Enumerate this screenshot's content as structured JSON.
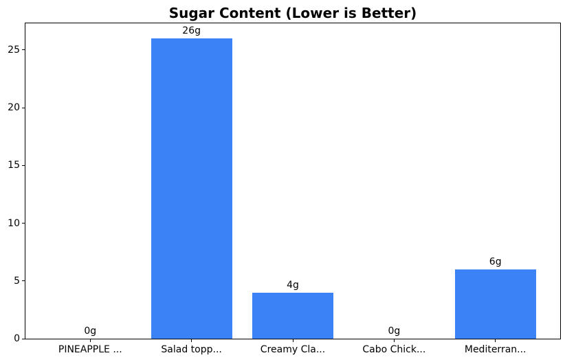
{
  "chart_data": {
    "type": "bar",
    "title": "Sugar Content (Lower is Better)",
    "categories": [
      "PINEAPPLE ...",
      "Salad topp...",
      "Creamy Cla...",
      "Cabo Chick...",
      "Mediterran..."
    ],
    "values": [
      0,
      26,
      4,
      0,
      6
    ],
    "value_labels": [
      "0g",
      "26g",
      "4g",
      "0g",
      "6g"
    ],
    "yticks": [
      0,
      5,
      10,
      15,
      20,
      25
    ],
    "ylim": [
      0,
      27.3
    ],
    "xlabel": "",
    "ylabel": "",
    "bar_width_fraction": 0.8,
    "grid": false,
    "legend": null,
    "colors": {
      "bar": "#3b82f6",
      "text": "#000000",
      "spine": "#000000",
      "background": "#ffffff"
    }
  }
}
